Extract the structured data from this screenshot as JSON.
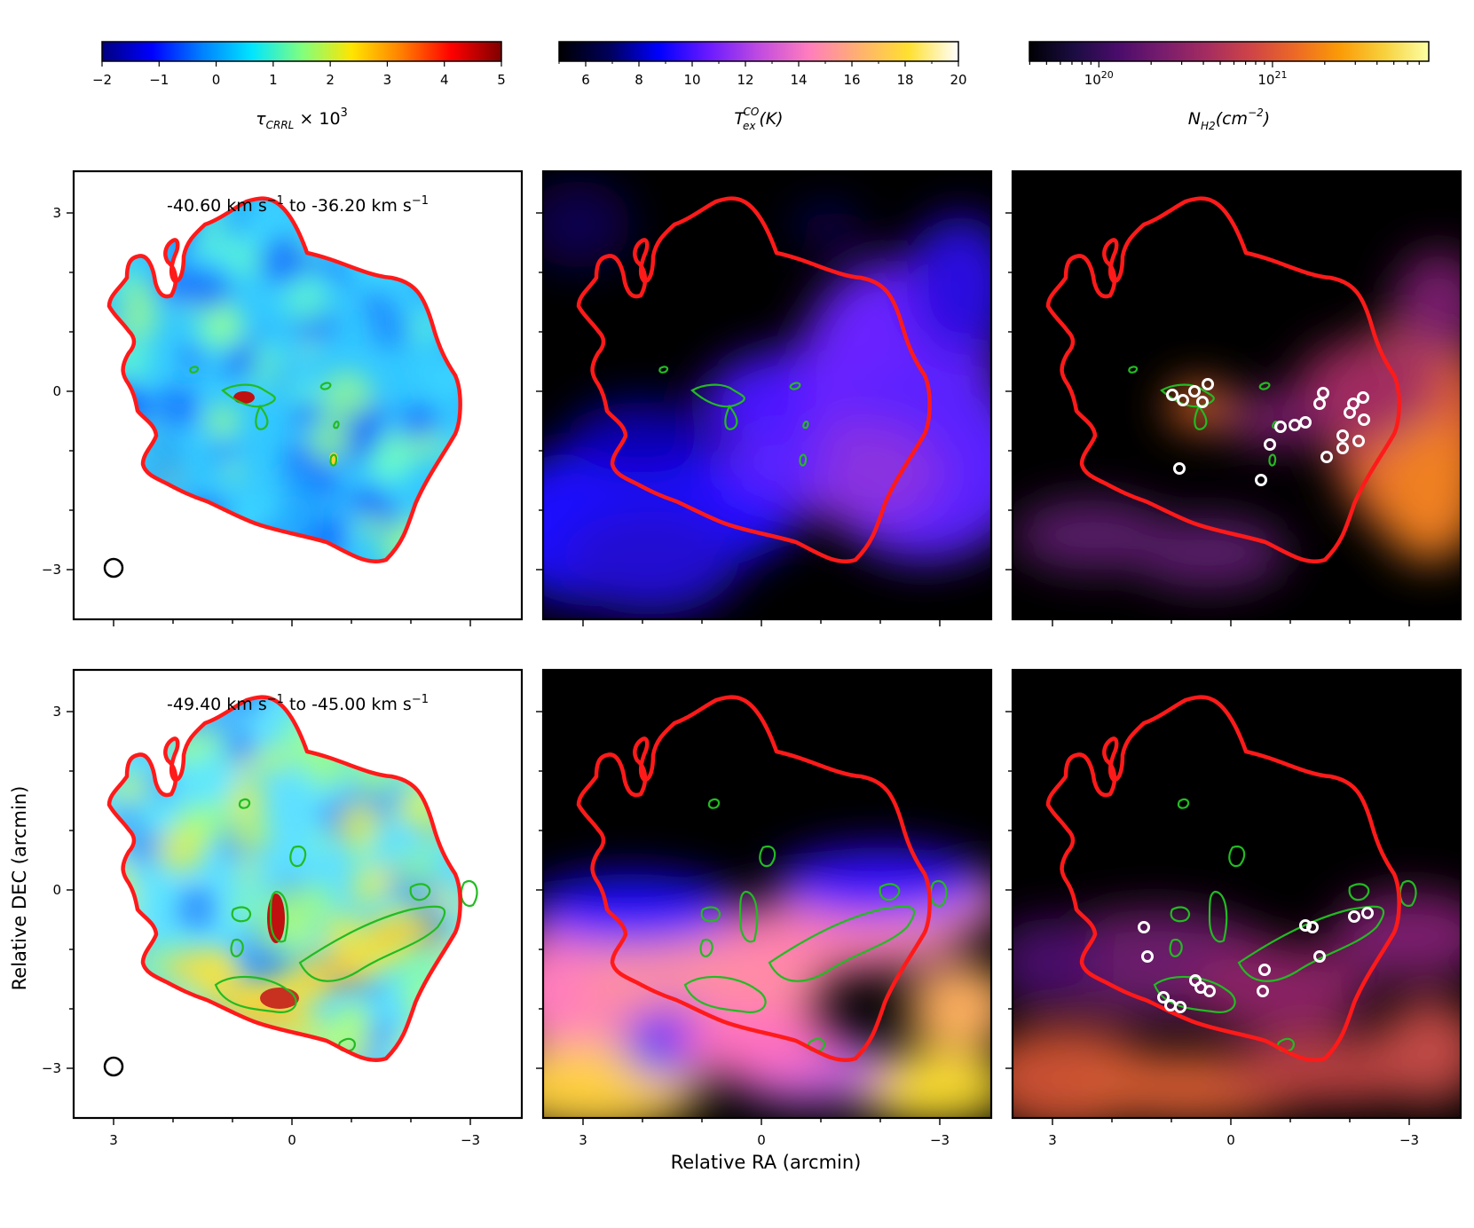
{
  "chart_data": {
    "type": "heatmap",
    "layout": "2 rows x 3 columns of sky maps with shared colorbars",
    "colorbars": [
      {
        "label_main": "τ",
        "label_sub": "CRRL",
        "label_rest": " × 10",
        "label_sup": "3",
        "ticks": [
          "−2",
          "−1",
          "0",
          "1",
          "2",
          "3",
          "4",
          "5"
        ],
        "range": [
          -2,
          5
        ],
        "colormap": "jet",
        "colors": [
          "#00007f",
          "#0000ff",
          "#0080ff",
          "#00e5ff",
          "#7fff7f",
          "#ffe500",
          "#ff7f00",
          "#ff0000",
          "#7f0000"
        ]
      },
      {
        "label_main": "T",
        "label_sub": "ex",
        "label_sup": "CO",
        "label_rest": "(K)",
        "ticks": [
          "6",
          "8",
          "10",
          "12",
          "14",
          "16",
          "18",
          "20"
        ],
        "range": [
          5,
          20
        ],
        "colormap": "gnuplot2",
        "colors": [
          "#000000",
          "#00005a",
          "#0000ff",
          "#6a1aff",
          "#c04be0",
          "#ff7dbd",
          "#ffb070",
          "#ffe030",
          "#ffffff"
        ]
      },
      {
        "label_main": "N",
        "label_sub": "H2",
        "label_rest": "(cm",
        "label_sup": "−2",
        "label_end": ")",
        "ticks": [
          "10^20",
          "10^21"
        ],
        "scale": "log",
        "colormap": "inferno",
        "colors": [
          "#000004",
          "#1b0c41",
          "#4a0c6b",
          "#781c6d",
          "#a52c60",
          "#cf4446",
          "#ed6925",
          "#fb9b06",
          "#f7d13d",
          "#fcffa4"
        ]
      }
    ],
    "rows": [
      {
        "velocity_range": "-40.60 km s^-1 to -36.20 km s^-1",
        "title_parts": [
          "-40.60 km s",
          "−1",
          " to -36.20 km s",
          "−1"
        ]
      },
      {
        "velocity_range": "-49.40 km s^-1 to -45.00 km s^-1",
        "title_parts": [
          "-49.40 km s",
          "−1",
          " to -45.00 km s",
          "−1"
        ]
      }
    ],
    "xlabel": "Relative RA (arcmin)",
    "ylabel": "Relative DEC (arcmin)",
    "x_ticks": [
      "3",
      "0",
      "−3"
    ],
    "y_ticks": [
      "3",
      "0",
      "−3"
    ],
    "xlim": [
      3.8,
      -3.8
    ],
    "ylim": [
      -3.8,
      3.8
    ],
    "overlays": {
      "region_outline_color": "#ff1a1a",
      "contour_color": "#22bb22",
      "source_marker_color": "#ffffff",
      "beam_marker": "circle"
    }
  }
}
